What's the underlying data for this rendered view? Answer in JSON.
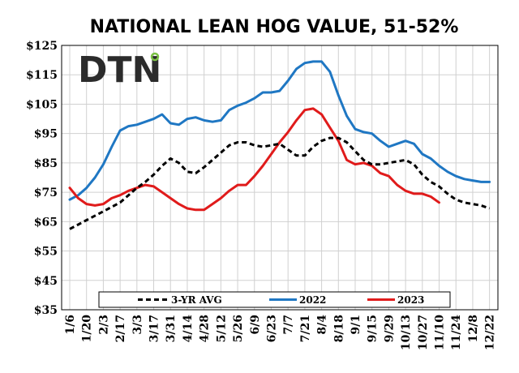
{
  "chart_data": {
    "type": "line",
    "title": "NATIONAL LEAN HOG VALUE, 51-52%",
    "logo_text": "DTN",
    "ylim": [
      35,
      125
    ],
    "yticks": [
      125,
      115,
      105,
      95,
      85,
      75,
      65,
      55,
      45,
      35
    ],
    "ytick_labels": [
      "$125",
      "$115",
      "$105",
      "$95",
      "$85",
      "$75",
      "$65",
      "$55",
      "$45",
      "$35"
    ],
    "xticks": [
      "1/6",
      "1/20",
      "2/3",
      "2/17",
      "3/3",
      "3/17",
      "3/31",
      "4/14",
      "4/28",
      "5/12",
      "5/26",
      "6/9",
      "6/23",
      "7/7",
      "7/21",
      "8/4",
      "8/18",
      "9/1",
      "9/15",
      "9/29",
      "10/13",
      "10/27",
      "11/10",
      "11/24",
      "12/8",
      "12/22"
    ],
    "grid": true,
    "legend_placement": "bottom",
    "series": [
      {
        "name": "3-YR AVG",
        "color": "#000000",
        "style": "dashed",
        "values": [
          62.5,
          64.0,
          65.5,
          67.0,
          68.5,
          70.0,
          71.5,
          74.0,
          76.5,
          78.5,
          81.0,
          84.0,
          86.5,
          85.0,
          82.0,
          81.5,
          83.5,
          86.0,
          88.5,
          91.0,
          92.0,
          92.0,
          91.0,
          90.5,
          91.0,
          91.5,
          89.5,
          87.5,
          87.5,
          90.5,
          92.5,
          93.5,
          93.5,
          92.0,
          89.0,
          86.0,
          84.5,
          84.5,
          85.0,
          85.5,
          86.0,
          84.5,
          81.0,
          78.5,
          77.0,
          74.5,
          72.5,
          71.5,
          71.0,
          70.5,
          69.5
        ]
      },
      {
        "name": "2022",
        "color": "#1f77c3",
        "style": "solid",
        "values": [
          72.5,
          74.0,
          76.5,
          80.0,
          84.5,
          90.5,
          96.0,
          97.5,
          98.0,
          99.0,
          100.0,
          101.5,
          98.5,
          98.0,
          100.0,
          100.5,
          99.5,
          99.0,
          99.5,
          103.0,
          104.5,
          105.5,
          107.0,
          109.0,
          109.0,
          109.5,
          113.0,
          117.0,
          119.0,
          119.5,
          119.5,
          116.0,
          108.0,
          101.0,
          96.5,
          95.5,
          95.0,
          92.5,
          90.5,
          91.5,
          92.5,
          91.5,
          88.0,
          86.5,
          84.0,
          82.0,
          80.5,
          79.5,
          79.0,
          78.5,
          78.5
        ]
      },
      {
        "name": "2023",
        "color": "#e01b1b",
        "style": "solid",
        "values": [
          76.5,
          73.0,
          71.0,
          70.5,
          71.0,
          73.0,
          74.0,
          75.5,
          76.5,
          77.5,
          77.0,
          75.0,
          73.0,
          71.0,
          69.5,
          69.0,
          69.0,
          71.0,
          73.0,
          75.5,
          77.5,
          77.5,
          80.5,
          84.0,
          88.0,
          92.0,
          95.5,
          99.5,
          103.0,
          103.5,
          101.5,
          97.0,
          92.5,
          86.0,
          84.5,
          85.0,
          84.0,
          81.5,
          80.5,
          77.5,
          75.5,
          74.5,
          74.5,
          73.5,
          71.5
        ]
      }
    ]
  }
}
